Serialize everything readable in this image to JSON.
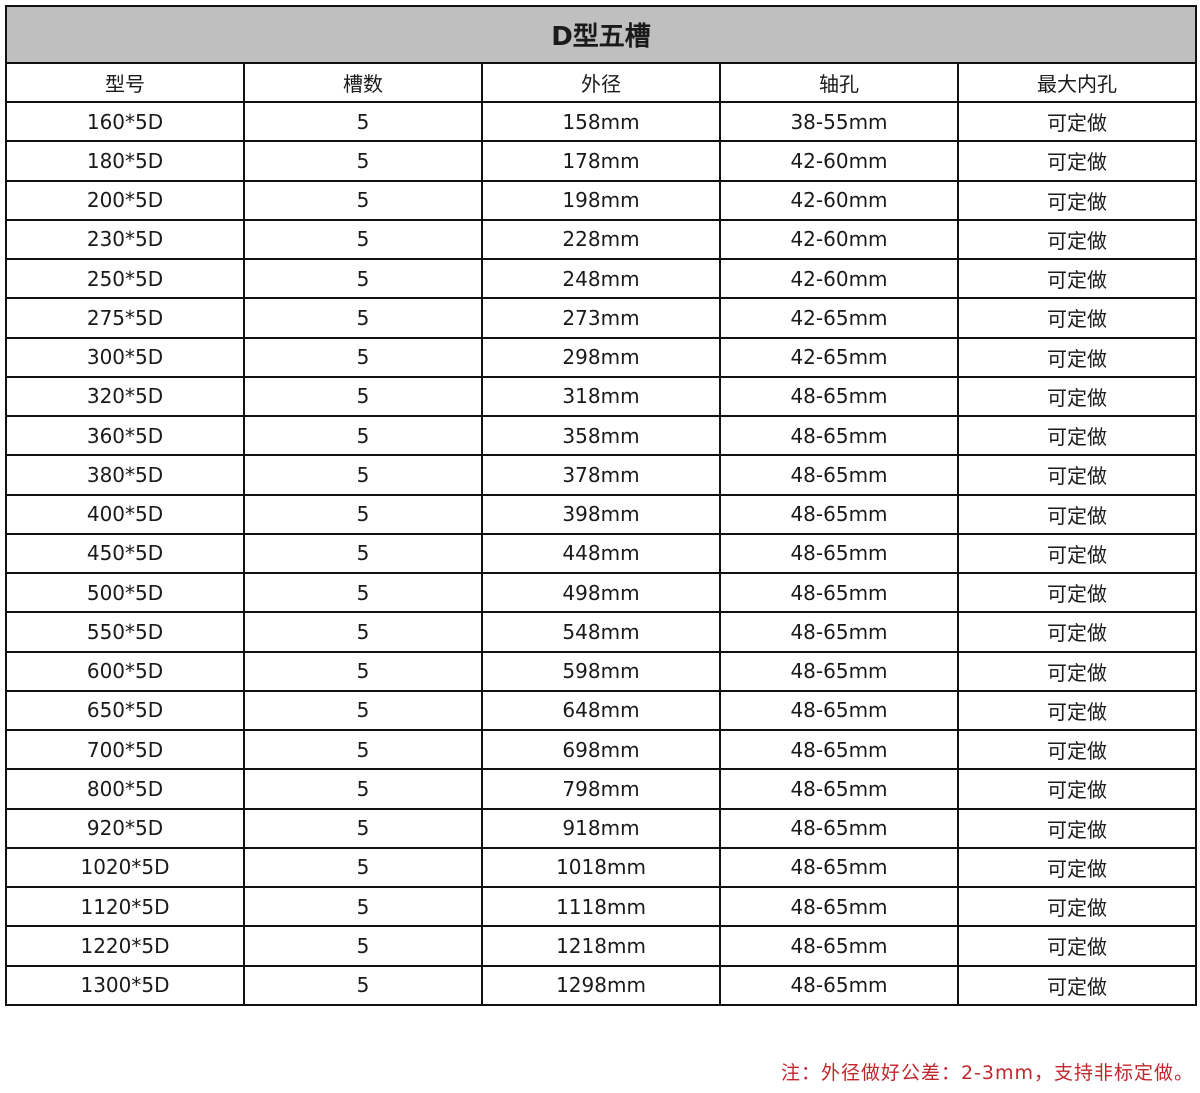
{
  "title": "D型五槽",
  "headers": [
    "型号",
    "槽数",
    "外径",
    "轴孔",
    "最大内孔"
  ],
  "rows": [
    [
      "160*5D",
      "5",
      "158mm",
      "38-55mm",
      "可定做"
    ],
    [
      "180*5D",
      "5",
      "178mm",
      "42-60mm",
      "可定做"
    ],
    [
      "200*5D",
      "5",
      "198mm",
      "42-60mm",
      "可定做"
    ],
    [
      "230*5D",
      "5",
      "228mm",
      "42-60mm",
      "可定做"
    ],
    [
      "250*5D",
      "5",
      "248mm",
      "42-60mm",
      "可定做"
    ],
    [
      "275*5D",
      "5",
      "273mm",
      "42-65mm",
      "可定做"
    ],
    [
      "300*5D",
      "5",
      "298mm",
      "42-65mm",
      "可定做"
    ],
    [
      "320*5D",
      "5",
      "318mm",
      "48-65mm",
      "可定做"
    ],
    [
      "360*5D",
      "5",
      "358mm",
      "48-65mm",
      "可定做"
    ],
    [
      "380*5D",
      "5",
      "378mm",
      "48-65mm",
      "可定做"
    ],
    [
      "400*5D",
      "5",
      "398mm",
      "48-65mm",
      "可定做"
    ],
    [
      "450*5D",
      "5",
      "448mm",
      "48-65mm",
      "可定做"
    ],
    [
      "500*5D",
      "5",
      "498mm",
      "48-65mm",
      "可定做"
    ],
    [
      "550*5D",
      "5",
      "548mm",
      "48-65mm",
      "可定做"
    ],
    [
      "600*5D",
      "5",
      "598mm",
      "48-65mm",
      "可定做"
    ],
    [
      "650*5D",
      "5",
      "648mm",
      "48-65mm",
      "可定做"
    ],
    [
      "700*5D",
      "5",
      "698mm",
      "48-65mm",
      "可定做"
    ],
    [
      "800*5D",
      "5",
      "798mm",
      "48-65mm",
      "可定做"
    ],
    [
      "920*5D",
      "5",
      "918mm",
      "48-65mm",
      "可定做"
    ],
    [
      "1020*5D",
      "5",
      "1018mm",
      "48-65mm",
      "可定做"
    ],
    [
      "1120*5D",
      "5",
      "1118mm",
      "48-65mm",
      "可定做"
    ],
    [
      "1220*5D",
      "5",
      "1218mm",
      "48-65mm",
      "可定做"
    ],
    [
      "1300*5D",
      "5",
      "1298mm",
      "48-65mm",
      "可定做"
    ]
  ],
  "note": "注：外径做好公差：2-3mm，支持非标定做。",
  "colors": {
    "title_bg": "#bfbfbf",
    "note": "#c0282d",
    "border": "#111111"
  }
}
